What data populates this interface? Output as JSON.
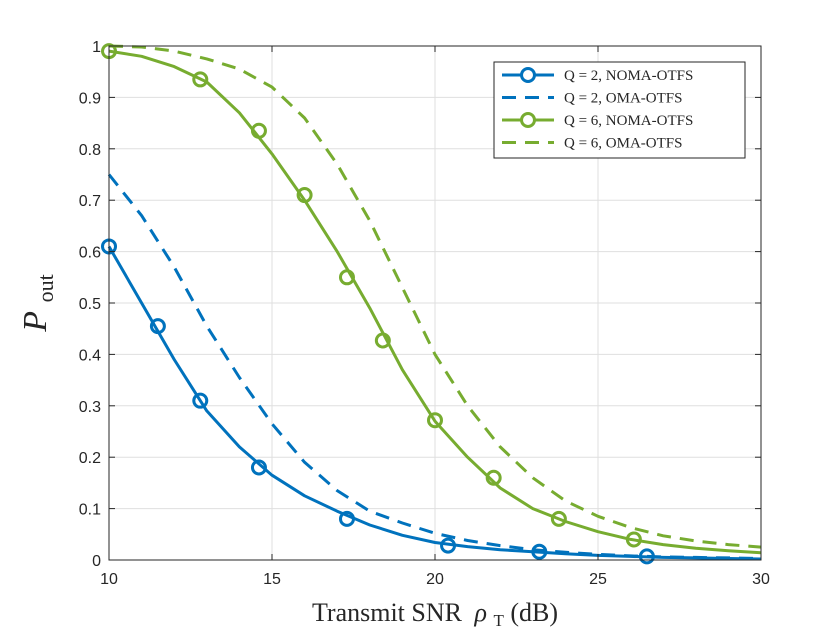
{
  "chart_data": {
    "type": "line",
    "title": "",
    "xlabel": "Transmit SNR",
    "xlabel_symbol": "ρ",
    "xlabel_subscript": "T",
    "xlabel_unit": "(dB)",
    "ylabel": "P",
    "ylabel_subscript": "out",
    "xlim": [
      10,
      30
    ],
    "ylim": [
      0,
      1
    ],
    "xticks": [
      10,
      15,
      20,
      25,
      30
    ],
    "yticks": [
      0,
      0.1,
      0.2,
      0.3,
      0.4,
      0.5,
      0.6,
      0.7,
      0.8,
      0.9,
      1
    ],
    "grid": true,
    "legend_position": "top-right",
    "series": [
      {
        "name": "Q = 2, NOMA-OTFS",
        "color": "#0072BD",
        "dash": "solid",
        "marker": "circle",
        "x": [
          10,
          11,
          12,
          13,
          14,
          15,
          16,
          17,
          18,
          19,
          20,
          21,
          22,
          23,
          24,
          25,
          26,
          27,
          28,
          29,
          30
        ],
        "y": [
          0.61,
          0.5,
          0.39,
          0.29,
          0.22,
          0.165,
          0.125,
          0.095,
          0.068,
          0.048,
          0.034,
          0.026,
          0.02,
          0.016,
          0.012,
          0.009,
          0.007,
          0.005,
          0.004,
          0.003,
          0.002
        ],
        "markers_x": [
          10,
          11.5,
          12.8,
          14.6,
          17.3,
          20.4,
          23.2,
          26.5
        ],
        "markers_y": [
          0.61,
          0.455,
          0.31,
          0.18,
          0.08,
          0.028,
          0.016,
          0.007
        ]
      },
      {
        "name": "Q = 2, OMA-OTFS",
        "color": "#0072BD",
        "dash": "dashed",
        "marker": "none",
        "x": [
          10,
          11,
          12,
          13,
          14,
          15,
          16,
          17,
          18,
          19,
          20,
          21,
          22,
          23,
          24,
          25,
          26,
          27,
          28,
          29,
          30
        ],
        "y": [
          0.75,
          0.67,
          0.57,
          0.455,
          0.355,
          0.265,
          0.19,
          0.135,
          0.095,
          0.072,
          0.052,
          0.038,
          0.028,
          0.02,
          0.015,
          0.011,
          0.008,
          0.006,
          0.005,
          0.004,
          0.003
        ]
      },
      {
        "name": "Q = 6, NOMA-OTFS",
        "color": "#77AC30",
        "dash": "solid",
        "marker": "circle",
        "x": [
          10,
          11,
          12,
          13,
          14,
          15,
          16,
          17,
          18,
          19,
          20,
          21,
          22,
          23,
          24,
          25,
          26,
          27,
          28,
          29,
          30
        ],
        "y": [
          0.99,
          0.98,
          0.96,
          0.93,
          0.87,
          0.79,
          0.7,
          0.6,
          0.49,
          0.37,
          0.27,
          0.2,
          0.14,
          0.1,
          0.075,
          0.055,
          0.04,
          0.03,
          0.023,
          0.018,
          0.014
        ],
        "markers_x": [
          10,
          12.8,
          14.6,
          16,
          17.3,
          18.4,
          20,
          21.8,
          23.8,
          26.1
        ],
        "markers_y": [
          0.99,
          0.935,
          0.835,
          0.71,
          0.55,
          0.427,
          0.272,
          0.16,
          0.08,
          0.04
        ]
      },
      {
        "name": "Q = 6, OMA-OTFS",
        "color": "#77AC30",
        "dash": "dashed",
        "marker": "none",
        "x": [
          10,
          11,
          12,
          13,
          14,
          15,
          16,
          17,
          18,
          19,
          20,
          21,
          22,
          23,
          24,
          25,
          26,
          27,
          28,
          29,
          30
        ],
        "y": [
          1.0,
          0.998,
          0.99,
          0.975,
          0.955,
          0.92,
          0.86,
          0.77,
          0.66,
          0.53,
          0.4,
          0.3,
          0.22,
          0.16,
          0.115,
          0.085,
          0.063,
          0.047,
          0.037,
          0.03,
          0.025
        ]
      }
    ]
  }
}
